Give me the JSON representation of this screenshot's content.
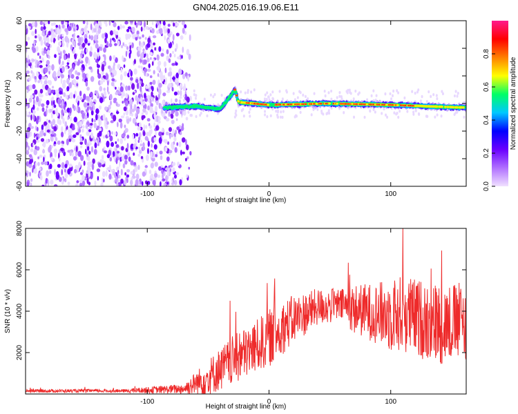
{
  "title": "GN04.2025.016.19.06.E11",
  "chart_data": [
    {
      "type": "heatmap",
      "xlabel": "Height of straight line (km)",
      "ylabel": "Frequency (Hz)",
      "xlim": [
        -200,
        162
      ],
      "ylim": [
        -60,
        60
      ],
      "xticks": [
        -100,
        0,
        100
      ],
      "yticks": [
        -60,
        -40,
        -20,
        0,
        20,
        40,
        60
      ],
      "colorbar": {
        "label": "Normalized spectral amplitude",
        "range": [
          0,
          1
        ],
        "ticks": [
          0.0,
          0.2,
          0.4,
          0.6,
          0.8
        ],
        "tick_labels": [
          "0.0",
          "0.2",
          "0.4",
          "0.6",
          "0.8"
        ],
        "colormap": [
          "#f0e0ff",
          "#b070ff",
          "#6a00ff",
          "#0000ff",
          "#00c8ff",
          "#00ff66",
          "#ffff00",
          "#ff8000",
          "#ff0000",
          "#ff1a8c"
        ]
      },
      "noise_region_x": [
        -200,
        -68
      ],
      "signal_ridge": [
        {
          "x": -86,
          "y": -3
        },
        {
          "x": -60,
          "y": -2
        },
        {
          "x": -40,
          "y": -4
        },
        {
          "x": -32,
          "y": 5
        },
        {
          "x": -28,
          "y": 10
        },
        {
          "x": -25,
          "y": 1
        },
        {
          "x": 0,
          "y": -1
        },
        {
          "x": 50,
          "y": 0
        },
        {
          "x": 100,
          "y": -1
        },
        {
          "x": 130,
          "y": -2
        },
        {
          "x": 162,
          "y": -3
        }
      ]
    },
    {
      "type": "line",
      "xlabel": "Height of straight line (km)",
      "ylabel": "SNR (10 * v/v)",
      "xlim": [
        -200,
        162
      ],
      "ylim": [
        0,
        8000
      ],
      "xticks": [
        -100,
        0,
        100
      ],
      "yticks": [
        2000,
        4000,
        6000,
        8000
      ],
      "color": "#ee2a2a",
      "envelope": {
        "x": [
          -200,
          -120,
          -70,
          -50,
          -30,
          -10,
          0,
          20,
          40,
          60,
          70,
          90,
          100,
          110,
          120,
          140,
          160
        ],
        "mean": [
          150,
          150,
          250,
          800,
          1600,
          2300,
          2700,
          3600,
          4200,
          4300,
          4100,
          3900,
          3800,
          3900,
          3700,
          3400,
          3500
        ],
        "noise": [
          80,
          80,
          250,
          900,
          1200,
          1300,
          1400,
          1200,
          900,
          800,
          1200,
          1500,
          1800,
          1900,
          1900,
          2000,
          1900
        ]
      }
    }
  ]
}
